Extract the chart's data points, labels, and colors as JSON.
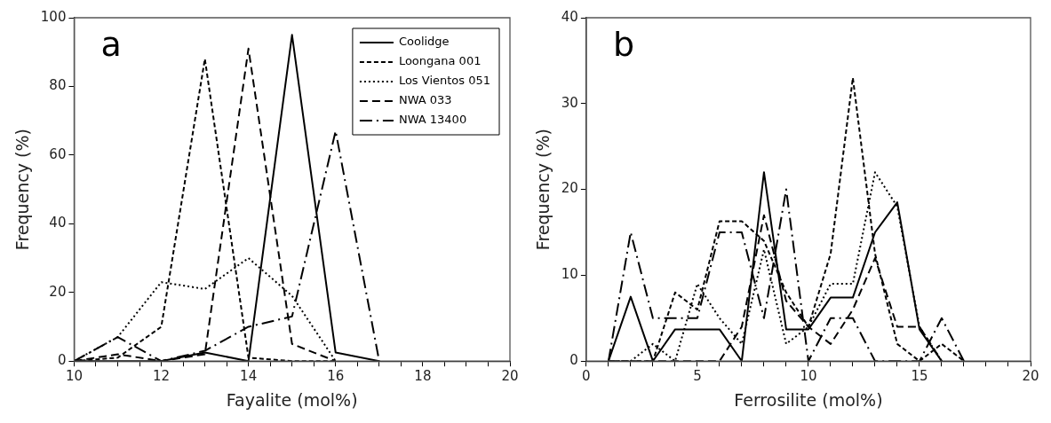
{
  "chart_data": [
    {
      "type": "line",
      "annotations": [
        "a"
      ],
      "xlabel": "Fayalite (mol%)",
      "ylabel": "Frequency (%)",
      "xlim": [
        10,
        20
      ],
      "ylim": [
        0,
        100
      ],
      "xticks": [
        10,
        {
          "value": 10.5,
          "label": null
        },
        {
          "value": 11,
          "label": null
        },
        {
          "value": 11.5,
          "label": null
        },
        12,
        {
          "value": 12.5,
          "label": null
        },
        {
          "value": 13,
          "label": null
        },
        {
          "value": 13.5,
          "label": null
        },
        14,
        {
          "value": 14.5,
          "label": null
        },
        {
          "value": 15,
          "label": null
        },
        {
          "value": 15.5,
          "label": null
        },
        16,
        {
          "value": 16.5,
          "label": null
        },
        {
          "value": 17,
          "label": null
        },
        {
          "value": 17.5,
          "label": null
        },
        18,
        {
          "value": 18.5,
          "label": null
        },
        {
          "value": 19,
          "label": null
        },
        {
          "value": 19.5,
          "label": null
        },
        20
      ],
      "yticks": [
        0,
        20,
        40,
        60,
        80,
        100
      ],
      "grid": false,
      "legend": "top right",
      "x": [
        10,
        11,
        12,
        13,
        14,
        15,
        16,
        17
      ],
      "series": [
        {
          "name": "Coolidge",
          "color": "#000000",
          "line_style": "solid",
          "values": [
            0,
            0,
            0,
            2.5,
            0,
            95,
            2.5,
            0
          ]
        },
        {
          "name": "Loongana 001",
          "color": "#000000",
          "line_style": "dashed",
          "values": [
            0,
            1,
            10,
            88,
            1,
            0,
            0,
            null
          ]
        },
        {
          "name": "Los Vientos 051",
          "color": "#000000",
          "line_style": "dotted",
          "values": [
            0,
            7,
            23,
            21,
            30,
            19,
            0,
            null
          ]
        },
        {
          "name": "NWA 033",
          "color": "#000000",
          "line_style": "dashed",
          "values": [
            0,
            2,
            0,
            2,
            91,
            5,
            0,
            null
          ]
        },
        {
          "name": "NWA 13400",
          "color": "#000000",
          "line_style": "dashed",
          "values": [
            0,
            7,
            0,
            3,
            10,
            13,
            67,
            0
          ]
        }
      ]
    },
    {
      "type": "line",
      "annotations": [
        "b"
      ],
      "xlabel": "Ferrosilite (mol%)",
      "ylabel": "Frequency (%)",
      "xlim": [
        0,
        20
      ],
      "ylim": [
        0,
        40
      ],
      "xticks": [
        0,
        {
          "value": 1,
          "label": null
        },
        {
          "value": 2,
          "label": null
        },
        {
          "value": 3,
          "label": null
        },
        {
          "value": 4,
          "label": null
        },
        5,
        {
          "value": 6,
          "label": null
        },
        {
          "value": 7,
          "label": null
        },
        {
          "value": 8,
          "label": null
        },
        {
          "value": 9,
          "label": null
        },
        10,
        {
          "value": 11,
          "label": null
        },
        {
          "value": 12,
          "label": null
        },
        {
          "value": 13,
          "label": null
        },
        {
          "value": 14,
          "label": null
        },
        15,
        {
          "value": 16,
          "label": null
        },
        {
          "value": 17,
          "label": null
        },
        {
          "value": 18,
          "label": null
        },
        {
          "value": 19,
          "label": null
        },
        20
      ],
      "yticks": [
        0,
        10,
        20,
        30,
        40
      ],
      "grid": false,
      "legend": false,
      "x": [
        1,
        2,
        3,
        4,
        5,
        6,
        7,
        8,
        9,
        10,
        11,
        12,
        13,
        14,
        15,
        16,
        17
      ],
      "series": [
        {
          "color": "#000000",
          "line_style": "solid",
          "values": [
            0,
            7.5,
            0,
            3.7,
            3.7,
            3.7,
            0,
            22,
            3.7,
            3.7,
            7.4,
            7.4,
            15,
            18.5,
            3.7,
            0,
            null
          ]
        },
        {
          "color": "#000000",
          "line_style": "dashed",
          "values": [
            0,
            0,
            0,
            8,
            6,
            16.3,
            16.3,
            14,
            8,
            4,
            12.5,
            33,
            12.5,
            2,
            0,
            2,
            0
          ]
        },
        {
          "color": "#000000",
          "line_style": "dotted",
          "values": [
            0,
            0,
            2,
            0,
            9,
            5,
            2,
            13,
            2,
            4,
            9,
            9,
            22,
            18,
            4,
            0,
            null
          ]
        },
        {
          "color": "#000000",
          "line_style": "dashed",
          "values": [
            0,
            0,
            0,
            0,
            0,
            0,
            4,
            17,
            7,
            4,
            2,
            6,
            12,
            4,
            4,
            0,
            null
          ]
        },
        {
          "color": "#000000",
          "line_style": "dashed",
          "values": [
            0,
            15,
            5,
            5,
            5,
            15,
            15,
            5,
            20,
            0,
            5,
            5,
            0,
            0,
            0,
            5,
            0
          ]
        }
      ]
    }
  ]
}
